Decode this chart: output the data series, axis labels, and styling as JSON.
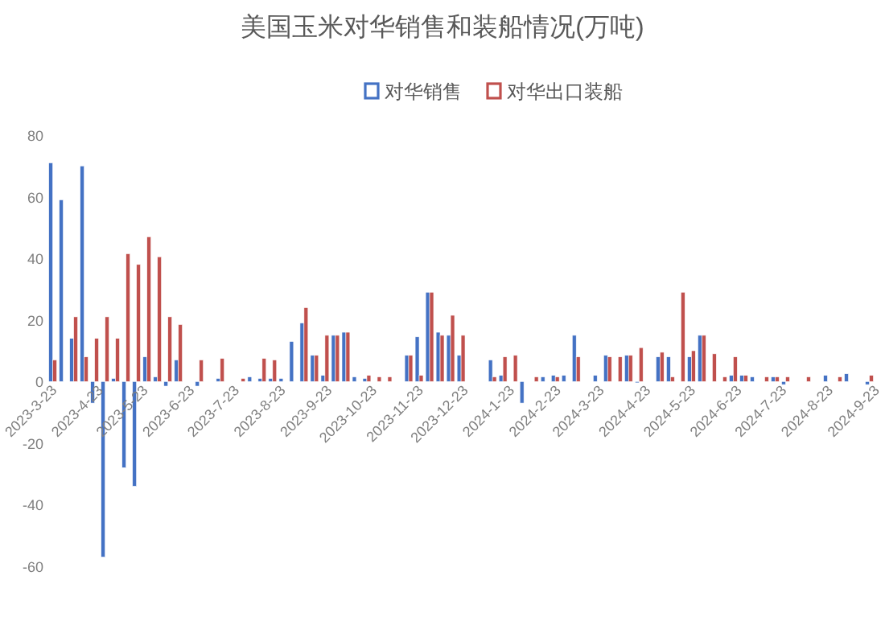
{
  "chart_data": {
    "type": "bar",
    "title": "美国玉米对华销售和装船情况(万吨)",
    "x": [
      "2023-03-23",
      "2023-03-30",
      "2023-04-06",
      "2023-04-13",
      "2023-04-20",
      "2023-04-27",
      "2023-05-04",
      "2023-05-11",
      "2023-05-18",
      "2023-05-25",
      "2023-06-01",
      "2023-06-08",
      "2023-06-15",
      "2023-06-22",
      "2023-06-29",
      "2023-07-06",
      "2023-07-13",
      "2023-07-20",
      "2023-07-27",
      "2023-08-03",
      "2023-08-10",
      "2023-08-17",
      "2023-08-24",
      "2023-08-31",
      "2023-09-07",
      "2023-09-14",
      "2023-09-21",
      "2023-09-28",
      "2023-10-05",
      "2023-10-12",
      "2023-10-19",
      "2023-10-26",
      "2023-11-02",
      "2023-11-09",
      "2023-11-16",
      "2023-11-23",
      "2023-11-30",
      "2023-12-07",
      "2023-12-14",
      "2023-12-21",
      "2023-12-28",
      "2024-01-04",
      "2024-01-11",
      "2024-01-18",
      "2024-01-25",
      "2024-02-01",
      "2024-02-08",
      "2024-02-15",
      "2024-02-22",
      "2024-02-29",
      "2024-03-07",
      "2024-03-14",
      "2024-03-21",
      "2024-03-28",
      "2024-04-04",
      "2024-04-11",
      "2024-04-18",
      "2024-04-25",
      "2024-05-02",
      "2024-05-09",
      "2024-05-16",
      "2024-05-23",
      "2024-05-30",
      "2024-06-06",
      "2024-06-13",
      "2024-06-20",
      "2024-06-27",
      "2024-07-04",
      "2024-07-11",
      "2024-07-18",
      "2024-07-25",
      "2024-08-01",
      "2024-08-08",
      "2024-08-15",
      "2024-08-22",
      "2024-08-29",
      "2024-09-05",
      "2024-09-12",
      "2024-09-19"
    ],
    "series": [
      {
        "name": "对华销售",
        "color": "#4472c4",
        "values": [
          71,
          59,
          14,
          70,
          -7,
          -57,
          1,
          -28,
          -34,
          8,
          1.5,
          -1.5,
          7,
          null,
          -1.5,
          null,
          1,
          null,
          null,
          1.5,
          1,
          1,
          1,
          13,
          19,
          8.5,
          2,
          15,
          16,
          1.5,
          1,
          null,
          null,
          null,
          8.5,
          14.5,
          29,
          16,
          15,
          8.5,
          null,
          null,
          7,
          2,
          null,
          -7,
          null,
          1.5,
          2,
          2,
          15,
          null,
          2,
          8.5,
          null,
          8.5,
          0,
          null,
          8,
          8,
          null,
          8,
          15,
          null,
          null,
          2,
          2,
          1.5,
          null,
          1.5,
          -1,
          null,
          null,
          null,
          2,
          null,
          2.5,
          null,
          -1
        ]
      },
      {
        "name": "对华出口装船",
        "color": "#c0504d",
        "values": [
          7,
          null,
          21,
          8,
          14,
          21,
          14,
          41.5,
          38,
          47,
          40.5,
          21,
          18.5,
          null,
          7,
          null,
          7.5,
          null,
          1,
          null,
          7.5,
          7,
          null,
          null,
          24,
          8.5,
          15,
          15,
          16,
          null,
          2,
          1.5,
          1.5,
          null,
          8.5,
          2,
          29,
          15,
          21.5,
          15,
          null,
          null,
          1.5,
          8,
          8.5,
          null,
          1.5,
          null,
          1.5,
          null,
          8,
          null,
          null,
          8,
          8,
          8.5,
          11,
          null,
          9.5,
          1.5,
          29,
          10,
          15,
          9,
          1.5,
          8,
          2,
          null,
          1.5,
          1.5,
          1.5,
          null,
          1.5,
          null,
          null,
          1.5,
          null,
          null,
          2
        ]
      }
    ],
    "xlim": [
      "2023-03-20",
      "2024-09-23"
    ],
    "xticks": [
      {
        "value": "2023-03-23",
        "label": "2023-3-23"
      },
      {
        "value": "2023-04-23",
        "label": "2023-4-23"
      },
      {
        "value": "2023-05-23",
        "label": "2023-5-23"
      },
      {
        "value": "2023-06-23",
        "label": "2023-6-23"
      },
      {
        "value": "2023-07-23",
        "label": "2023-7-23"
      },
      {
        "value": "2023-08-23",
        "label": "2023-8-23"
      },
      {
        "value": "2023-09-23",
        "label": "2023-9-23"
      },
      {
        "value": "2023-10-23",
        "label": "2023-10-23"
      },
      {
        "value": "2023-11-23",
        "label": "2023-11-23"
      },
      {
        "value": "2023-12-23",
        "label": "2023-12-23"
      },
      {
        "value": "2024-01-23",
        "label": "2024-1-23"
      },
      {
        "value": "2024-02-23",
        "label": "2024-2-23"
      },
      {
        "value": "2024-03-23",
        "label": "2024-3-23"
      },
      {
        "value": "2024-04-23",
        "label": "2024-4-23"
      },
      {
        "value": "2024-05-23",
        "label": "2024-5-23"
      },
      {
        "value": "2024-06-23",
        "label": "2024-6-23"
      },
      {
        "value": "2024-07-23",
        "label": "2024-7-23"
      },
      {
        "value": "2024-08-23",
        "label": "2024-8-23"
      },
      {
        "value": "2024-09-23",
        "label": "2024-9-23"
      }
    ],
    "ylim": [
      -60,
      80
    ],
    "yticks": [
      -60,
      -40,
      -20,
      0,
      20,
      40,
      60,
      80
    ],
    "legend": "top"
  }
}
